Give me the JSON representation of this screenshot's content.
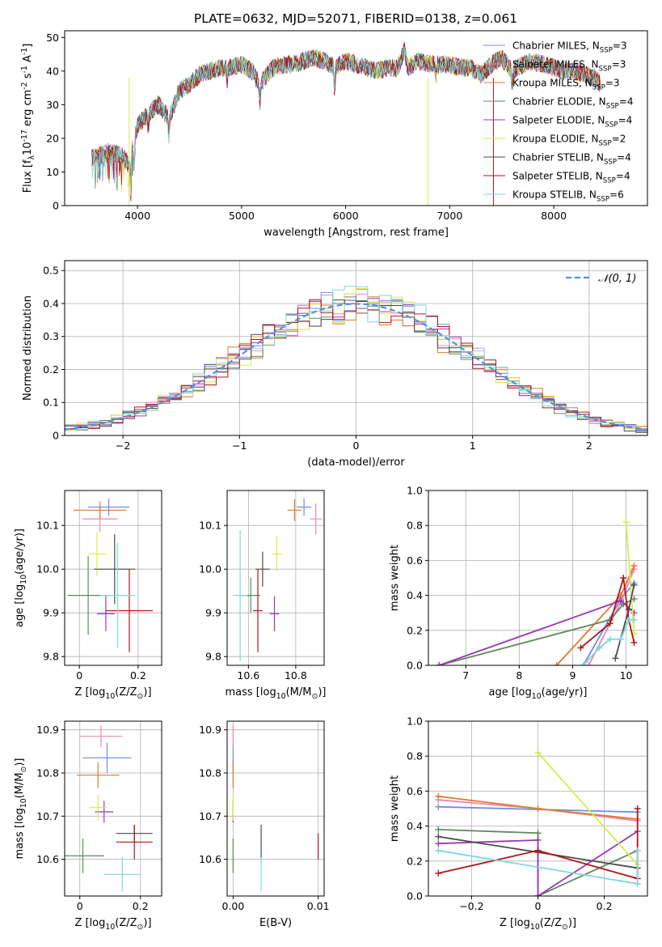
{
  "figure": {
    "title": "PLATE=0632, MJD=52071, FIBERID=0138, z=0.061",
    "models": [
      {
        "name": "Chabrier MILES, N$_{SSP}$=3",
        "color": "#6a8ee8"
      },
      {
        "name": "Salpeter MILES, N$_{SSP}$=3",
        "color": "#ee86b4"
      },
      {
        "name": "Kroupa MILES, N$_{SSP}$=3",
        "color": "#e07a2c"
      },
      {
        "name": "Chabrier ELODIE, N$_{SSP}$=4",
        "color": "#5f8a5f"
      },
      {
        "name": "Salpeter ELODIE, N$_{SSP}$=4",
        "color": "#9b37b6"
      },
      {
        "name": "Kroupa ELODIE, N$_{SSP}$=2",
        "color": "#d6ec4a"
      },
      {
        "name": "Chabrier STELIB, N$_{SSP}$=4",
        "color": "#4b4b4b"
      },
      {
        "name": "Salpeter STELIB, N$_{SSP}$=4",
        "color": "#b3141a"
      },
      {
        "name": "Kroupa STELIB, N$_{SSP}$=6",
        "color": "#7fd6dc"
      }
    ]
  },
  "chart_data": [
    {
      "id": "spectrum",
      "type": "line",
      "xlabel": "wavelength [Angstrom, rest frame]",
      "ylabel": "Flux [f$_{\\lambda}$10$^{-17}$ erg cm$^{-2}$ s$^{-1}$ A$^{-1}$]",
      "xlim": [
        3300,
        8900
      ],
      "ylim": [
        0,
        52
      ],
      "xticks": [
        4000,
        5000,
        6000,
        7000,
        8000
      ],
      "yticks": [
        0,
        10,
        20,
        30,
        40,
        50
      ],
      "legend": "upper-right",
      "spectrum_x": [
        3560,
        3700,
        3850,
        3920,
        4000,
        4100,
        4200,
        4300,
        4400,
        4500,
        4600,
        4700,
        4800,
        4900,
        5000,
        5100,
        5175,
        5300,
        5400,
        5500,
        5600,
        5700,
        5800,
        5900,
        6000,
        6100,
        6200,
        6300,
        6400,
        6500,
        6563,
        6600,
        6700,
        6800,
        6900,
        7000,
        7100,
        7200,
        7300,
        7400,
        7500,
        7600,
        7700,
        7800,
        7900,
        8000,
        8100,
        8200,
        8300,
        8400,
        8450
      ],
      "spectrum_y": [
        14,
        16,
        15,
        12,
        24,
        27,
        30,
        26,
        34,
        36,
        39,
        40,
        41,
        41,
        42,
        40,
        36,
        41,
        42,
        42,
        43,
        44,
        43,
        41,
        43,
        42,
        41,
        40,
        41,
        41,
        46,
        41,
        43,
        42,
        42,
        42,
        41,
        41,
        39,
        42,
        44,
        40,
        42,
        43,
        42,
        41,
        40,
        40,
        39,
        38,
        36
      ]
    },
    {
      "id": "residuals",
      "type": "line",
      "xlabel": "(data-model)/error",
      "ylabel": "Normed distribution",
      "xlim": [
        -2.5,
        2.5
      ],
      "ylim": [
        0,
        0.53
      ],
      "xticks": [
        -2,
        -1,
        0,
        1,
        2
      ],
      "yticks": [
        0.0,
        0.1,
        0.2,
        0.3,
        0.4,
        0.5
      ],
      "grid": true,
      "legend": "upper-right",
      "gaussian_label": "$\\mathcal{N}(0,1)$",
      "gaussian_color": "#5b8fd9"
    },
    {
      "id": "age-Z",
      "type": "scatter",
      "xlabel": "Z [log$_{10}$(Z/Z$_\\odot$)]",
      "ylabel": "age  [log$_{10}$(age/yr)]",
      "xlim": [
        -0.05,
        0.28
      ],
      "ylim": [
        9.78,
        10.18
      ],
      "xticks": [
        0.0,
        0.2
      ],
      "yticks": [
        9.8,
        9.9,
        10.0,
        10.1
      ],
      "grid": true,
      "points": [
        {
          "x": 0.1,
          "y": 10.142,
          "xerr": 0.07,
          "yerr": 0.02
        },
        {
          "x": 0.07,
          "y": 10.115,
          "xerr": 0.06,
          "yerr": 0.03
        },
        {
          "x": 0.07,
          "y": 10.135,
          "xerr": 0.09,
          "yerr": 0.02
        },
        {
          "x": 0.03,
          "y": 9.94,
          "xerr": 0.07,
          "yerr": 0.09
        },
        {
          "x": 0.09,
          "y": 9.898,
          "xerr": 0.03,
          "yerr": 0.04
        },
        {
          "x": 0.06,
          "y": 10.035,
          "xerr": 0.03,
          "yerr": 0.05
        },
        {
          "x": 0.12,
          "y": 10.0,
          "xerr": 0.07,
          "yerr": 0.08
        },
        {
          "x": 0.17,
          "y": 9.905,
          "xerr": 0.08,
          "yerr": 0.095
        },
        {
          "x": 0.13,
          "y": 9.94,
          "xerr": 0.06,
          "yerr": 0.12
        }
      ]
    },
    {
      "id": "age-mass",
      "type": "scatter",
      "xlabel": "mass [log$_{10}$(M/M$_\\odot$)]",
      "ylabel": "",
      "xlim": [
        10.51,
        10.92
      ],
      "ylim": [
        9.78,
        10.18
      ],
      "xticks": [
        10.6,
        10.8
      ],
      "yticks": [
        9.8,
        9.9,
        10.0,
        10.1
      ],
      "grid": true,
      "points": [
        {
          "x": 10.835,
          "y": 10.142,
          "xerr": 0.03,
          "yerr": 0.02
        },
        {
          "x": 10.885,
          "y": 10.115,
          "xerr": 0.025,
          "yerr": 0.035
        },
        {
          "x": 10.795,
          "y": 10.135,
          "xerr": 0.03,
          "yerr": 0.025
        },
        {
          "x": 10.61,
          "y": 9.94,
          "xerr": 0.04,
          "yerr": 0.04
        },
        {
          "x": 10.71,
          "y": 9.898,
          "xerr": 0.02,
          "yerr": 0.04
        },
        {
          "x": 10.72,
          "y": 10.035,
          "xerr": 0.02,
          "yerr": 0.04
        },
        {
          "x": 10.66,
          "y": 10.0,
          "xerr": 0.03,
          "yerr": 0.04
        },
        {
          "x": 10.64,
          "y": 9.905,
          "xerr": 0.02,
          "yerr": 0.095
        },
        {
          "x": 10.565,
          "y": 9.94,
          "xerr": 0.03,
          "yerr": 0.15
        }
      ]
    },
    {
      "id": "weight-age",
      "type": "line",
      "xlabel": "age  [log$_{10}$(age/yr)]",
      "ylabel": "mass weight",
      "xlim": [
        6.3,
        10.4
      ],
      "ylim": [
        0,
        1.0
      ],
      "xticks": [
        7,
        8,
        9,
        10
      ],
      "yticks": [
        0.0,
        0.2,
        0.4,
        0.6,
        0.8,
        1.0
      ],
      "grid": true,
      "series": [
        {
          "x": [
            9.2,
            9.9,
            10.15
          ],
          "y": [
            0.0,
            0.38,
            0.47
          ]
        },
        {
          "x": [
            9.3,
            9.9,
            10.15
          ],
          "y": [
            0.0,
            0.36,
            0.55
          ]
        },
        {
          "x": [
            8.7,
            9.9,
            10.15
          ],
          "y": [
            0.0,
            0.4,
            0.57
          ]
        },
        {
          "x": [
            6.5,
            9.7,
            9.95,
            10.15
          ],
          "y": [
            0.0,
            0.26,
            0.35,
            0.38
          ]
        },
        {
          "x": [
            6.5,
            9.9,
            10.15
          ],
          "y": [
            0.0,
            0.37,
            0.3
          ]
        },
        {
          "x": [
            10.0,
            10.15
          ],
          "y": [
            0.82,
            0.18
          ]
        },
        {
          "x": [
            9.8,
            10.05,
            10.15
          ],
          "y": [
            0.04,
            0.32,
            0.46
          ]
        },
        {
          "x": [
            9.15,
            9.7,
            9.95,
            10.05,
            10.15
          ],
          "y": [
            0.1,
            0.24,
            0.5,
            0.26,
            0.13
          ]
        },
        {
          "x": [
            9.2,
            9.5,
            9.7,
            9.9,
            10.05,
            10.15
          ],
          "y": [
            0.0,
            0.1,
            0.15,
            0.15,
            0.26,
            0.26
          ]
        }
      ]
    },
    {
      "id": "mass-Z",
      "type": "scatter",
      "xlabel": "Z [log$_{10}$(Z/Z$_\\odot$)]",
      "ylabel": "mass [log$_{10}$(M/M$_\\odot$)]",
      "xlim": [
        -0.05,
        0.27
      ],
      "ylim": [
        10.515,
        10.92
      ],
      "xticks": [
        0.0,
        0.2
      ],
      "yticks": [
        10.6,
        10.7,
        10.8,
        10.9
      ],
      "grid": true,
      "points": [
        {
          "x": 0.09,
          "y": 10.835,
          "xerr": 0.08,
          "yerr": 0.035
        },
        {
          "x": 0.07,
          "y": 10.885,
          "xerr": 0.07,
          "yerr": 0.025
        },
        {
          "x": 0.06,
          "y": 10.795,
          "xerr": 0.07,
          "yerr": 0.03
        },
        {
          "x": 0.01,
          "y": 10.608,
          "xerr": 0.07,
          "yerr": 0.04
        },
        {
          "x": 0.08,
          "y": 10.71,
          "xerr": 0.03,
          "yerr": 0.025
        },
        {
          "x": 0.06,
          "y": 10.72,
          "xerr": 0.03,
          "yerr": 0.03
        },
        {
          "x": 0.18,
          "y": 10.66,
          "xerr": 0.06,
          "yerr": 0.02
        },
        {
          "x": 0.18,
          "y": 10.64,
          "xerr": 0.06,
          "yerr": 0.04
        },
        {
          "x": 0.14,
          "y": 10.565,
          "xerr": 0.06,
          "yerr": 0.04
        }
      ]
    },
    {
      "id": "mass-EBV",
      "type": "scatter",
      "xlabel": "E(B-V)",
      "ylabel": "",
      "xlim": [
        -0.0007,
        0.0107
      ],
      "ylim": [
        10.515,
        10.92
      ],
      "xticks": [
        0.0,
        0.01
      ],
      "xticklabels": [
        "0.00",
        "0.01"
      ],
      "yticks": [
        10.6,
        10.7,
        10.8,
        10.9
      ],
      "grid": true,
      "points": [
        {
          "x": 0.0,
          "y": 10.835,
          "xerr": 0,
          "yerr": 0.035
        },
        {
          "x": 0.0,
          "y": 10.885,
          "xerr": 0,
          "yerr": 0.025
        },
        {
          "x": 0.0,
          "y": 10.795,
          "xerr": 0,
          "yerr": 0.03
        },
        {
          "x": 0.0,
          "y": 10.608,
          "xerr": 0,
          "yerr": 0.04
        },
        {
          "x": 0.0,
          "y": 10.71,
          "xerr": 0,
          "yerr": 0.025
        },
        {
          "x": 0.0,
          "y": 10.72,
          "xerr": 0,
          "yerr": 0.03
        },
        {
          "x": 0.0033,
          "y": 10.64,
          "xerr": 0,
          "yerr": 0.04
        },
        {
          "x": 0.01,
          "y": 10.63,
          "xerr": 0,
          "yerr": 0.03
        },
        {
          "x": 0.0033,
          "y": 10.565,
          "xerr": 0,
          "yerr": 0.04
        }
      ]
    },
    {
      "id": "weight-Z",
      "type": "line",
      "xlabel": "Z [log$_{10}$(Z/Z$_\\odot$)]",
      "ylabel": "mass weight",
      "xlim": [
        -0.33,
        0.33
      ],
      "ylim": [
        0,
        1.0
      ],
      "xticks": [
        -0.2,
        0.0,
        0.2
      ],
      "yticks": [
        0.0,
        0.2,
        0.4,
        0.6,
        0.8,
        1.0
      ],
      "grid": true,
      "series": [
        {
          "x": [
            -0.3,
            0.3
          ],
          "y": [
            0.51,
            0.48
          ]
        },
        {
          "x": [
            -0.3,
            0.0,
            0.3
          ],
          "y": [
            0.55,
            0.5,
            0.43
          ]
        },
        {
          "x": [
            -0.3,
            0.0,
            0.3
          ],
          "y": [
            0.57,
            0.5,
            0.44
          ]
        },
        {
          "x": [
            -0.3,
            0.0,
            0.0,
            0.3
          ],
          "y": [
            0.38,
            0.36,
            0.0,
            0.26
          ]
        },
        {
          "x": [
            -0.3,
            0.0,
            0.0,
            0.3
          ],
          "y": [
            0.3,
            0.32,
            0.0,
            0.37
          ]
        },
        {
          "x": [
            0.0,
            0.3
          ],
          "y": [
            0.82,
            0.18
          ]
        },
        {
          "x": [
            -0.3,
            0.0,
            0.3
          ],
          "y": [
            0.34,
            0.25,
            0.16
          ]
        },
        {
          "x": [
            -0.3,
            0.0,
            0.3,
            0.3
          ],
          "y": [
            0.13,
            0.26,
            0.1,
            0.5
          ]
        },
        {
          "x": [
            -0.3,
            0.3,
            0.3
          ],
          "y": [
            0.26,
            0.07,
            0.26
          ]
        }
      ]
    }
  ]
}
